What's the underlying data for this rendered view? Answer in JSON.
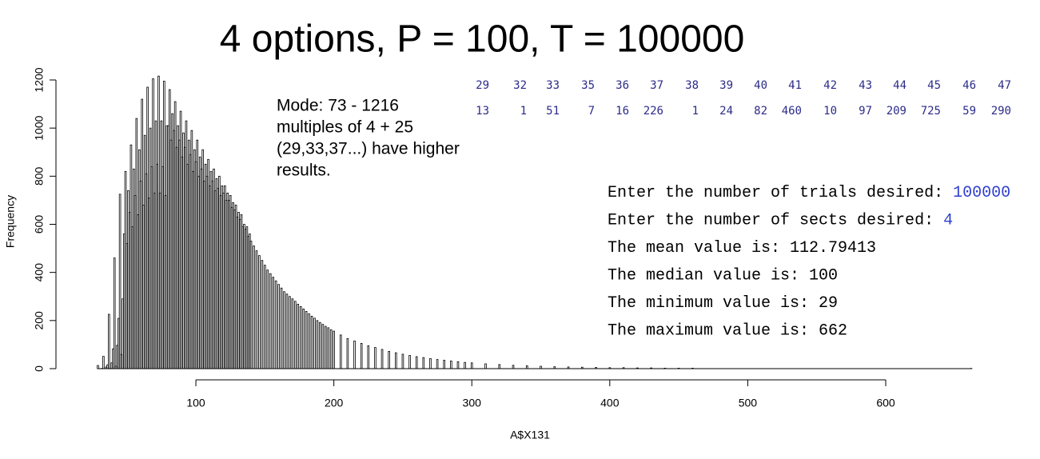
{
  "chart_data": {
    "type": "bar",
    "title": "4 options, P = 100, T = 100000",
    "xlabel": "A$X131",
    "ylabel": "Frequency",
    "annotation": [
      "Mode: 73 - 1216",
      "multiples of 4 + 25",
      "(29,33,37...) have higher",
      "results."
    ],
    "color": "#000000",
    "x": [
      29,
      32,
      33,
      35,
      36,
      37,
      38,
      39,
      40,
      41,
      42,
      43,
      44,
      45,
      46,
      47,
      48,
      49,
      50,
      51,
      52,
      53,
      54,
      55,
      56,
      57,
      58,
      59,
      60,
      61,
      62,
      63,
      64,
      65,
      66,
      67,
      68,
      69,
      70,
      71,
      72,
      73,
      74,
      75,
      76,
      77,
      78,
      79,
      80,
      81,
      82,
      83,
      84,
      85,
      86,
      87,
      88,
      89,
      90,
      91,
      92,
      93,
      94,
      95,
      96,
      97,
      98,
      99,
      100,
      101,
      102,
      103,
      104,
      105,
      106,
      107,
      108,
      109,
      110,
      111,
      112,
      113,
      114,
      115,
      116,
      117,
      118,
      119,
      120,
      121,
      122,
      123,
      124,
      125,
      126,
      127,
      128,
      129,
      130,
      131,
      132,
      133,
      134,
      135,
      136,
      137,
      138,
      139,
      140,
      142,
      144,
      146,
      148,
      150,
      152,
      154,
      156,
      158,
      160,
      162,
      164,
      166,
      168,
      170,
      172,
      174,
      176,
      178,
      180,
      182,
      184,
      186,
      188,
      190,
      192,
      194,
      196,
      198,
      200,
      205,
      210,
      215,
      220,
      225,
      230,
      235,
      240,
      245,
      250,
      255,
      260,
      265,
      270,
      275,
      280,
      285,
      290,
      295,
      300,
      310,
      320,
      330,
      340,
      350,
      360,
      370,
      380,
      390,
      400,
      410,
      420,
      430,
      440,
      450,
      460,
      662
    ],
    "values": [
      13,
      1,
      51,
      7,
      16,
      226,
      1,
      24,
      82,
      460,
      10,
      97,
      209,
      725,
      59,
      290,
      560,
      820,
      520,
      740,
      650,
      930,
      590,
      830,
      720,
      1040,
      640,
      910,
      780,
      1120,
      680,
      970,
      810,
      1170,
      710,
      1000,
      840,
      1205,
      730,
      1030,
      850,
      1216,
      730,
      1030,
      840,
      1195,
      720,
      1010,
      1010,
      1160,
      950,
      1060,
      990,
      1110,
      920,
      1010,
      950,
      1070,
      880,
      980,
      920,
      1030,
      850,
      950,
      890,
      990,
      820,
      910,
      860,
      950,
      800,
      880,
      830,
      910,
      780,
      850,
      800,
      870,
      760,
      820,
      780,
      830,
      740,
      790,
      750,
      800,
      720,
      760,
      730,
      760,
      700,
      730,
      700,
      720,
      670,
      690,
      660,
      680,
      630,
      650,
      620,
      640,
      590,
      600,
      580,
      590,
      550,
      560,
      530,
      510,
      490,
      470,
      450,
      430,
      410,
      395,
      380,
      365,
      350,
      335,
      320,
      310,
      300,
      290,
      280,
      268,
      258,
      248,
      238,
      228,
      218,
      210,
      200,
      192,
      184,
      176,
      170,
      162,
      156,
      140,
      125,
      115,
      105,
      95,
      88,
      80,
      72,
      66,
      60,
      55,
      50,
      46,
      42,
      38,
      35,
      32,
      29,
      26,
      24,
      20,
      17,
      14,
      12,
      10,
      8,
      7,
      6,
      5,
      4,
      4,
      3,
      3,
      2,
      2,
      2,
      1
    ],
    "xlim": [
      29,
      662
    ],
    "xticks": [
      100,
      200,
      300,
      400,
      500,
      600
    ],
    "ylim": [
      0,
      1200
    ],
    "yticks": [
      0,
      200,
      400,
      600,
      800,
      1000,
      1200
    ]
  },
  "frequency_table": {
    "values": [
      29,
      32,
      33,
      35,
      36,
      37,
      38,
      39,
      40,
      41,
      42,
      43,
      44,
      45,
      46,
      47
    ],
    "counts": [
      13,
      1,
      51,
      7,
      16,
      226,
      1,
      24,
      82,
      460,
      10,
      97,
      209,
      725,
      59,
      290
    ]
  },
  "console": [
    {
      "text": "Enter the number of trials desired: ",
      "input": "100000"
    },
    {
      "text": "Enter the number of sects desired: ",
      "input": "4"
    },
    {
      "text": "The mean value is: 112.79413"
    },
    {
      "text": "The median value is: 100"
    },
    {
      "text": "The minimum value is: 29"
    },
    {
      "text": "The maximum value is: 662"
    }
  ]
}
